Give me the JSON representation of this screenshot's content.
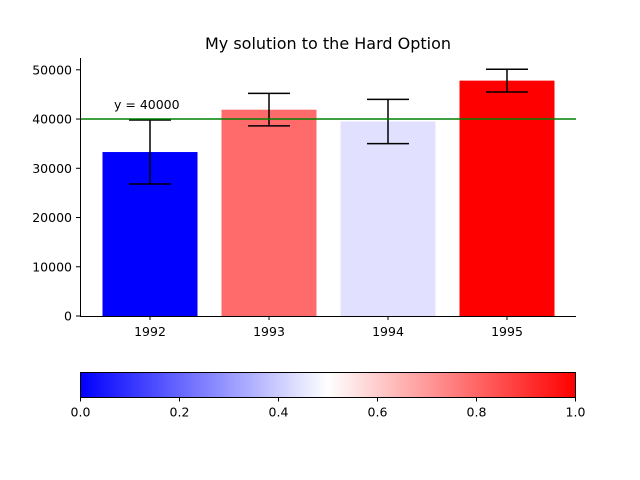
{
  "chart_data": {
    "type": "bar",
    "title": "My solution to the Hard Option",
    "xlabel": "",
    "ylabel": "",
    "categories": [
      "1992",
      "1993",
      "1994",
      "1995"
    ],
    "values": [
      33300,
      41900,
      39500,
      47800
    ],
    "error": [
      6500,
      3300,
      4500,
      2300
    ],
    "bar_colors": [
      "#0000ff",
      "#ff6b6b",
      "#e1e1ff",
      "#ff0000"
    ],
    "ylim": [
      0,
      52500
    ],
    "yticks": [
      0,
      10000,
      20000,
      30000,
      40000,
      50000
    ],
    "reference_line": {
      "y": 40000,
      "label": "y = 40000",
      "color": "#008000"
    },
    "colorbar": {
      "colormap": "bwr",
      "range": [
        0.0,
        1.0
      ],
      "ticks": [
        "0.0",
        "0.2",
        "0.4",
        "0.6",
        "0.8",
        "1.0"
      ],
      "colors": [
        "#0000ff",
        "#ffffff",
        "#ff0000"
      ]
    },
    "grid": false,
    "legend": "none"
  }
}
